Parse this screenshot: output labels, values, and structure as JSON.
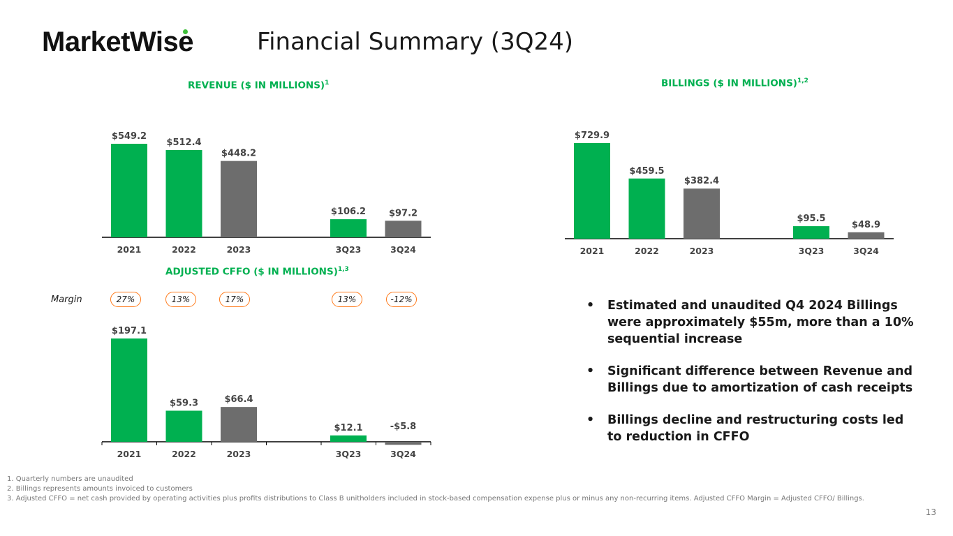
{
  "brand": {
    "logo_text": "MarketWise",
    "accent": "#00b050",
    "gray": "#6d6d6d",
    "highlight": "#ff7a1a"
  },
  "page": {
    "title": "Financial Summary (3Q24)",
    "page_number": "13"
  },
  "chart_data": [
    {
      "id": "revenue",
      "type": "bar",
      "title": "REVENUE ($ IN MILLIONS)",
      "title_sup": "1",
      "categories": [
        "2021",
        "2022",
        "2023",
        "",
        "3Q23",
        "3Q24"
      ],
      "values": [
        549.2,
        512.4,
        448.2,
        null,
        106.2,
        97.2
      ],
      "labels": [
        "$549.2",
        "$512.4",
        "$448.2",
        "",
        "$106.2",
        "$97.2"
      ],
      "colors": [
        "green",
        "green",
        "gray",
        "",
        "green",
        "gray"
      ],
      "ylim": [
        0,
        549.2
      ],
      "xlabel": "",
      "ylabel": ""
    },
    {
      "id": "billings",
      "type": "bar",
      "title": "BILLINGS ($ IN MILLIONS)",
      "title_sup": "1,2",
      "categories": [
        "2021",
        "2022",
        "2023",
        "",
        "3Q23",
        "3Q24"
      ],
      "values": [
        729.9,
        459.5,
        382.4,
        null,
        95.5,
        48.9
      ],
      "labels": [
        "$729.9",
        "$459.5",
        "$382.4",
        "",
        "$95.5",
        "$48.9"
      ],
      "colors": [
        "green",
        "green",
        "gray",
        "",
        "green",
        "gray"
      ],
      "ylim": [
        0,
        729.9
      ],
      "xlabel": "",
      "ylabel": ""
    },
    {
      "id": "cffo",
      "type": "bar",
      "title": "ADJUSTED CFFO ($ IN MILLIONS)",
      "title_sup": "1,3",
      "categories": [
        "2021",
        "2022",
        "2023",
        "",
        "3Q23",
        "3Q24"
      ],
      "values": [
        197.1,
        59.3,
        66.4,
        null,
        12.1,
        -5.8
      ],
      "labels": [
        "$197.1",
        "$59.3",
        "$66.4",
        "",
        "$12.1",
        "-$5.8"
      ],
      "colors": [
        "green",
        "green",
        "gray",
        "",
        "green",
        "gray"
      ],
      "ylim": [
        -5.8,
        197.1
      ],
      "xlabel": "",
      "ylabel": "",
      "margin_label": "Margin",
      "margins": [
        "27%",
        "13%",
        "17%",
        "",
        "13%",
        "-12%"
      ]
    }
  ],
  "bullets": [
    "Estimated and unaudited Q4 2024 Billings were approximately $55m, more than a 10% sequential increase",
    "Significant difference between Revenue and Billings due to amortization of cash receipts",
    "Billings decline and restructuring costs led to reduction in CFFO"
  ],
  "footnotes": [
    "1. Quarterly numbers are unaudited",
    "2. Billings represents amounts invoiced to customers",
    "3. Adjusted CFFO = net cash provided by operating activities plus profits distributions to Class B unitholders included in stock-based compensation expense plus or minus any non-recurring items.  Adjusted CFFO Margin = Adjusted CFFO/ Billings."
  ]
}
